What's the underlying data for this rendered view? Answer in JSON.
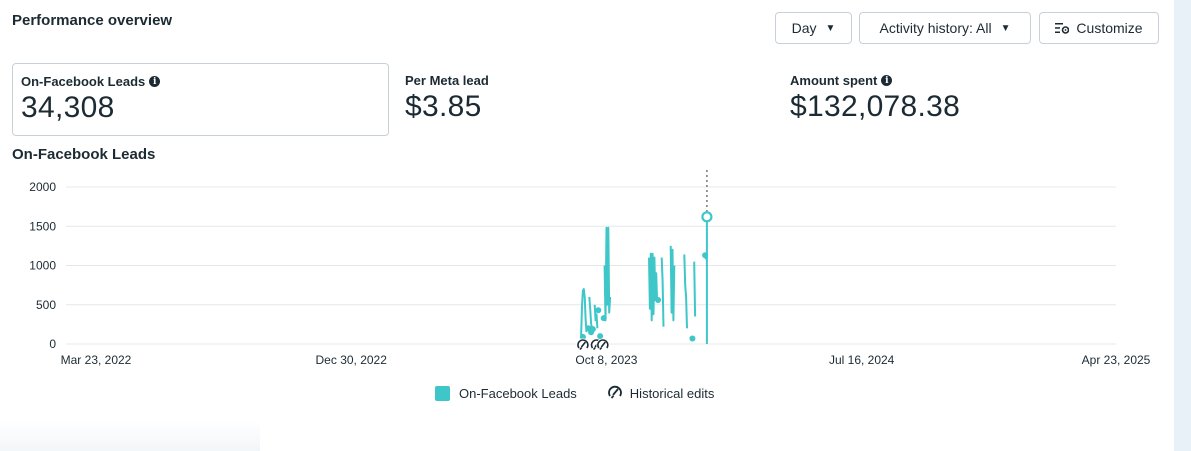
{
  "header": {
    "title": "Performance overview",
    "day_label": "Day",
    "activity_label": "Activity history: All",
    "customize_label": "Customize"
  },
  "metrics": {
    "leads": {
      "label": "On-Facebook Leads",
      "value": "34,308"
    },
    "cost_per_lead": {
      "label": "Per Meta lead",
      "value": "$3.85"
    },
    "amount_spent": {
      "label": "Amount spent",
      "value": "$132,078.38"
    }
  },
  "chart_title": "On-Facebook Leads",
  "legend": {
    "series_label": "On-Facebook Leads",
    "edits_label": "Historical edits"
  },
  "colors": {
    "series": "#3ec6c8",
    "grid": "#e4e8eb",
    "text": "#1c2b33"
  },
  "chart_data": {
    "type": "line",
    "title": "On-Facebook Leads",
    "xlabel": "",
    "ylabel": "",
    "ylim": [
      0,
      2000
    ],
    "y_ticks": [
      0,
      500,
      1000,
      1500,
      2000
    ],
    "x_range": [
      "2022-03-23",
      "2025-04-23"
    ],
    "x_ticks": [
      {
        "date": "2022-03-23",
        "label": "Mar 23, 2022"
      },
      {
        "date": "2022-12-30",
        "label": "Dec 30, 2022"
      },
      {
        "date": "2023-10-08",
        "label": "Oct 8, 2023"
      },
      {
        "date": "2024-07-16",
        "label": "Jul 16, 2024"
      },
      {
        "date": "2025-04-23",
        "label": "Apr 23, 2025"
      }
    ],
    "grid": true,
    "legend_position": "bottom",
    "series": [
      {
        "name": "On-Facebook Leads",
        "segments": [
          [
            [
              "2023-09-10",
              100
            ],
            [
              "2023-09-11",
              480
            ],
            [
              "2023-09-12",
              680
            ],
            [
              "2023-09-13",
              700
            ],
            [
              "2023-09-14",
              600
            ],
            [
              "2023-09-15",
              320
            ],
            [
              "2023-09-16",
              150
            ]
          ],
          [
            [
              "2023-09-19",
              600
            ],
            [
              "2023-09-20",
              450
            ],
            [
              "2023-09-21",
              260
            ],
            [
              "2023-09-22",
              200
            ]
          ],
          [
            [
              "2023-09-25",
              500
            ],
            [
              "2023-09-26",
              300
            ],
            [
              "2023-09-27",
              380
            ],
            [
              "2023-09-28",
              200
            ]
          ],
          [
            [
              "2023-10-06",
              1000
            ],
            [
              "2023-10-07",
              300
            ],
            [
              "2023-10-08",
              1480
            ],
            [
              "2023-10-09",
              500
            ],
            [
              "2023-10-10",
              1480
            ],
            [
              "2023-10-11",
              400
            ],
            [
              "2023-10-12",
              600
            ]
          ],
          [
            [
              "2023-11-24",
              1100
            ],
            [
              "2023-11-25",
              450
            ],
            [
              "2023-11-26",
              1150
            ],
            [
              "2023-11-27",
              300
            ],
            [
              "2023-11-28",
              1150
            ],
            [
              "2023-11-29",
              380
            ],
            [
              "2023-11-30",
              1100
            ],
            [
              "2023-12-01",
              560
            ],
            [
              "2023-12-02",
              900
            ],
            [
              "2023-12-03",
              550
            ]
          ],
          [
            [
              "2023-12-08",
              1100
            ],
            [
              "2023-12-09",
              800
            ],
            [
              "2023-12-10",
              220
            ]
          ],
          [
            [
              "2023-12-18",
              1250
            ],
            [
              "2023-12-19",
              400
            ],
            [
              "2023-12-20",
              1200
            ],
            [
              "2023-12-21",
              300
            ],
            [
              "2023-12-22",
              1000
            ]
          ],
          [
            [
              "2024-01-02",
              1140
            ],
            [
              "2024-01-03",
              750
            ],
            [
              "2024-01-04",
              600
            ],
            [
              "2024-01-05",
              200
            ]
          ],
          [
            [
              "2024-01-13",
              1050
            ],
            [
              "2024-01-14",
              350
            ]
          ],
          [
            [
              "2024-01-25",
              1120
            ],
            [
              "2024-01-26",
              1080
            ]
          ],
          [
            [
              "2024-01-27",
              1620
            ],
            [
              "2024-01-27",
              0
            ]
          ]
        ],
        "points": [
          [
            "2023-09-12",
            90
          ],
          [
            "2023-09-18",
            200
          ],
          [
            "2023-09-21",
            150
          ],
          [
            "2023-09-23",
            190
          ],
          [
            "2023-09-29",
            430
          ],
          [
            "2023-10-01",
            100
          ],
          [
            "2023-10-05",
            330
          ],
          [
            "2023-12-04",
            560
          ],
          [
            "2024-01-11",
            70
          ],
          [
            "2024-01-25",
            1130
          ]
        ],
        "highlight": [
          "2024-01-27",
          1620
        ]
      }
    ],
    "historical_edits": [
      "2023-09-12",
      "2023-09-27",
      "2023-10-04"
    ],
    "marker_date": "2024-01-27"
  }
}
